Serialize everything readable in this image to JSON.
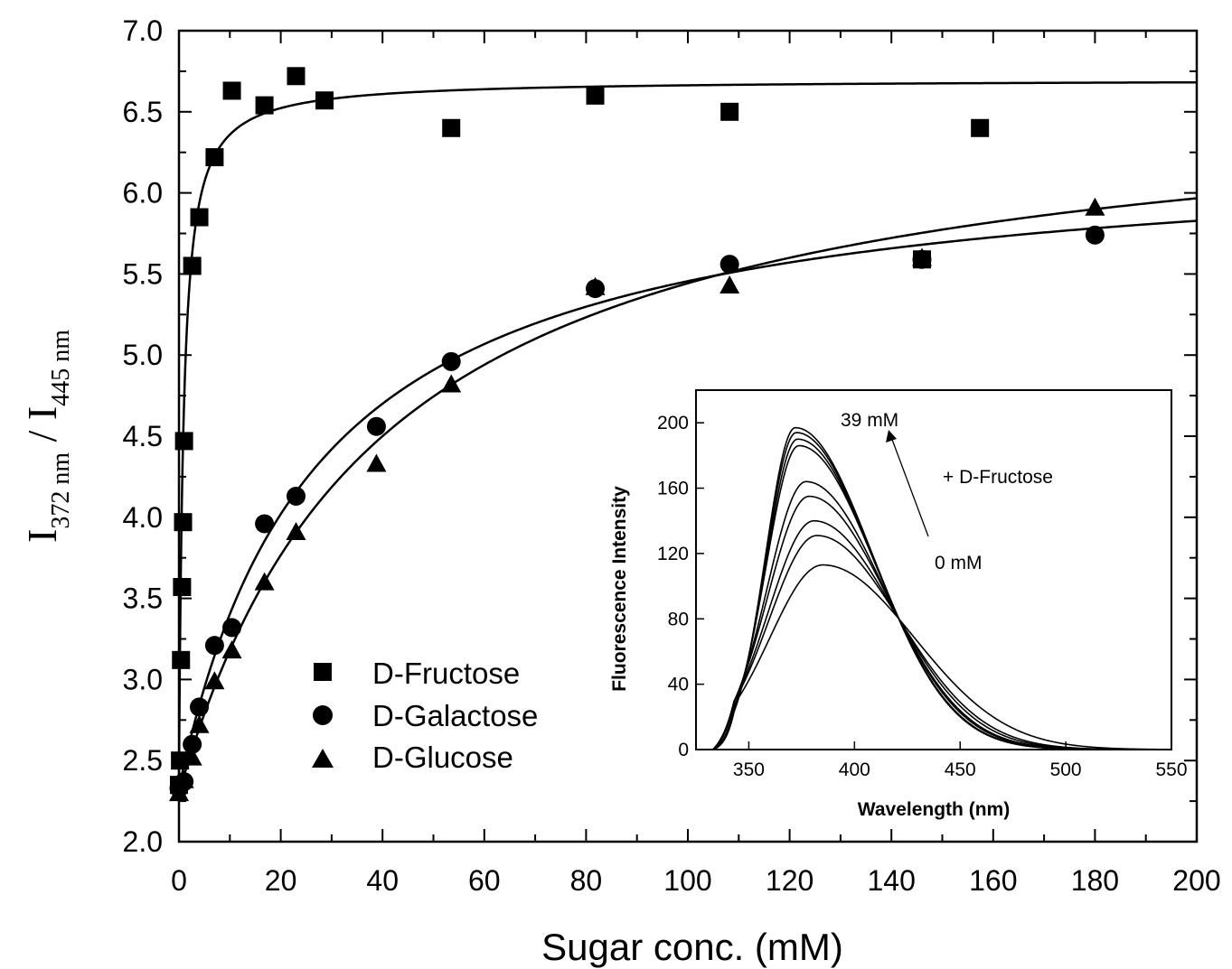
{
  "chart_data": [
    {
      "type": "scatter",
      "xlabel": "Sugar conc. (mM)",
      "ylabel": {
        "main": "I",
        "sub1": "372 nm",
        "sep": " / ",
        "main2": "I",
        "sub2": "445 nm"
      },
      "xlim": [
        0,
        200
      ],
      "ylim": [
        2.0,
        7.0
      ],
      "xticks": [
        0,
        20,
        40,
        60,
        80,
        100,
        120,
        140,
        160,
        180,
        200
      ],
      "yticks": [
        "2.0",
        "2.5",
        "3.0",
        "3.5",
        "4.0",
        "4.5",
        "5.0",
        "5.5",
        "6.0",
        "6.5",
        "7.0"
      ],
      "grid": false,
      "legend": "lower-left",
      "series": [
        {
          "name": "D-Fructose",
          "marker": "square",
          "points": [
            [
              0,
              2.35
            ],
            [
              0.2,
              2.5
            ],
            [
              0.4,
              3.12
            ],
            [
              0.6,
              3.57
            ],
            [
              0.8,
              3.97
            ],
            [
              1.0,
              4.47
            ],
            [
              2.6,
              5.55
            ],
            [
              4.0,
              5.85
            ],
            [
              7.0,
              6.22
            ],
            [
              10.4,
              6.63
            ],
            [
              16.8,
              6.54
            ],
            [
              23.0,
              6.72
            ],
            [
              28.6,
              6.57
            ],
            [
              53.5,
              6.4
            ],
            [
              81.8,
              6.6
            ],
            [
              108.2,
              6.5
            ],
            [
              146.0,
              5.59
            ],
            [
              157.4,
              6.4
            ]
          ],
          "fit": {
            "model": "hyperbolic",
            "y0": 2.35,
            "ymax": 6.7,
            "k": 0.85
          }
        },
        {
          "name": "D-Galactose",
          "marker": "circle",
          "points": [
            [
              0,
              2.33
            ],
            [
              1.0,
              2.37
            ],
            [
              2.6,
              2.6
            ],
            [
              4.0,
              2.83
            ],
            [
              7.0,
              3.21
            ],
            [
              10.4,
              3.32
            ],
            [
              16.8,
              3.96
            ],
            [
              23.0,
              4.13
            ],
            [
              38.8,
              4.56
            ],
            [
              53.5,
              4.96
            ],
            [
              81.8,
              5.41
            ],
            [
              108.2,
              5.56
            ],
            [
              146.0,
              5.59
            ],
            [
              180.0,
              5.74
            ]
          ],
          "fit": {
            "model": "hyperbolic",
            "y0": 2.33,
            "ymax": 6.3,
            "k": 27
          }
        },
        {
          "name": "D-Glucose",
          "marker": "triangle",
          "points": [
            [
              0,
              2.3
            ],
            [
              1.0,
              2.38
            ],
            [
              2.6,
              2.52
            ],
            [
              4.0,
              2.72
            ],
            [
              7.0,
              2.99
            ],
            [
              10.4,
              3.18
            ],
            [
              16.8,
              3.6
            ],
            [
              23.0,
              3.91
            ],
            [
              38.8,
              4.33
            ],
            [
              53.5,
              4.82
            ],
            [
              81.8,
              5.42
            ],
            [
              108.2,
              5.43
            ],
            [
              146.0,
              5.6
            ],
            [
              180.0,
              5.91
            ]
          ],
          "fit": {
            "model": "hyperbolic",
            "y0": 2.3,
            "ymax": 6.7,
            "k": 40
          }
        }
      ]
    },
    {
      "type": "line",
      "title": "",
      "xlabel": "Wavelength (nm)",
      "ylabel": "Fluorescence Intensity",
      "xlim": [
        325,
        550
      ],
      "ylim": [
        0,
        220
      ],
      "xticks": [
        350,
        400,
        450,
        500,
        550
      ],
      "yticks": [
        0,
        40,
        80,
        120,
        160,
        200
      ],
      "peaks": [
        197,
        194,
        190,
        186,
        164,
        155,
        140,
        131,
        113
      ],
      "annotations": {
        "top": "39 mM",
        "bottom": "0 mM",
        "arrow": "+ D-Fructose"
      }
    }
  ]
}
